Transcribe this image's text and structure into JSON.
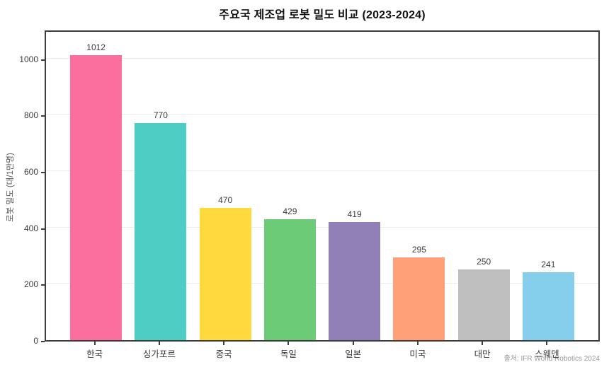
{
  "title": "주요국 제조업 로봇 밀도 비교 (2023-2024)",
  "source": "출처: IFR World Robotics 2024",
  "chart_data": {
    "type": "bar",
    "title": "주요국 제조업 로봇 밀도 비교 (2023-2024)",
    "categories": [
      "한국",
      "싱가포르",
      "중국",
      "독일",
      "일본",
      "미국",
      "대만",
      "스웨덴"
    ],
    "values": [
      1012,
      770,
      470,
      429,
      419,
      295,
      250,
      241
    ],
    "bar_colors": [
      "#FB6F9E",
      "#4ECDC4",
      "#FFD93D",
      "#6BCB77",
      "#9180B8",
      "#FFA078",
      "#BFBFBF",
      "#85CEEC"
    ],
    "xlabel": "",
    "ylabel": "로봇 밀도 (대/1만명)",
    "ylim": [
      0,
      1100
    ],
    "yticks": [
      0,
      200,
      400,
      600,
      800,
      1000
    ],
    "grid": "horizontal-light",
    "legend": "none",
    "annotation": "출처: IFR World Robotics 2024",
    "frame_color": "#3c3c3c",
    "gridline_color": "#ebebeb",
    "background_color": "#ffffff"
  }
}
